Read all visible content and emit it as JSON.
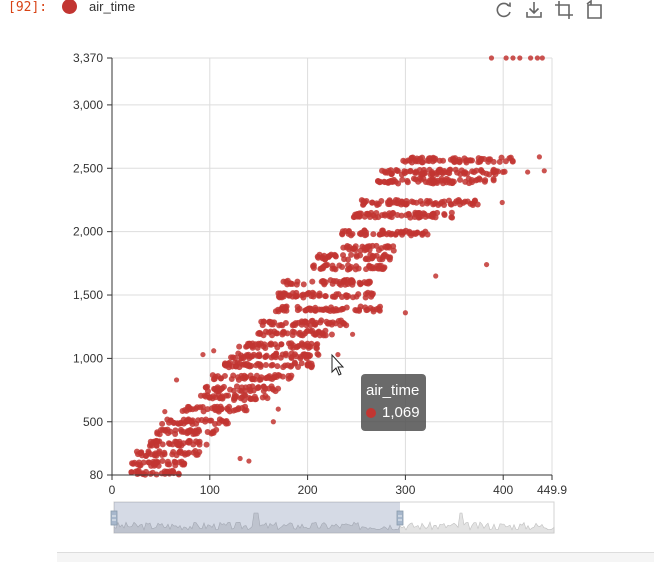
{
  "cell": {
    "prompt": "[92]:"
  },
  "legend": {
    "label": "air_time",
    "color": "#c23531"
  },
  "toolbox": [
    "restore-icon",
    "save-as-image-icon",
    "zoom-icon",
    "zoom-reset-icon"
  ],
  "tooltip": {
    "title": "air_time",
    "value": "1,069"
  },
  "chart_data": {
    "type": "scatter",
    "series": [
      {
        "name": "air_time",
        "color": "#c23531"
      }
    ],
    "xlim": [
      0,
      449.9
    ],
    "ylim": [
      80,
      3370
    ],
    "x_ticks": [
      "0",
      "100",
      "200",
      "300",
      "400",
      "449.9"
    ],
    "y_ticks": [
      "80",
      "500",
      "1,000",
      "1,500",
      "2,000",
      "2,500",
      "3,000",
      "3,370"
    ],
    "x_tick_values": [
      0,
      100,
      200,
      300,
      400,
      449.9
    ],
    "y_tick_values": [
      80,
      500,
      1000,
      1500,
      2000,
      2500,
      3000,
      3370
    ],
    "grid": true,
    "bands": [
      {
        "y": 2565,
        "x": [
          297,
          415
        ]
      },
      {
        "y": 2470,
        "x": [
          275,
          405
        ]
      },
      {
        "y": 2400,
        "x": [
          272,
          395
        ]
      },
      {
        "y": 2230,
        "x": [
          255,
          375
        ]
      },
      {
        "y": 2130,
        "x": [
          240,
          350
        ]
      },
      {
        "y": 1990,
        "x": [
          233,
          325
        ]
      },
      {
        "y": 1870,
        "x": [
          235,
          290
        ]
      },
      {
        "y": 1800,
        "x": [
          210,
          285
        ]
      },
      {
        "y": 1720,
        "x": [
          205,
          280
        ]
      },
      {
        "y": 1600,
        "x": [
          172,
          265
        ]
      },
      {
        "y": 1500,
        "x": [
          170,
          268
        ]
      },
      {
        "y": 1390,
        "x": [
          160,
          275
        ]
      },
      {
        "y": 1280,
        "x": [
          150,
          240
        ]
      },
      {
        "y": 1200,
        "x": [
          148,
          225
        ]
      },
      {
        "y": 1100,
        "x": [
          130,
          215
        ]
      },
      {
        "y": 1020,
        "x": [
          120,
          215
        ]
      },
      {
        "y": 950,
        "x": [
          115,
          205
        ]
      },
      {
        "y": 850,
        "x": [
          100,
          185
        ]
      },
      {
        "y": 760,
        "x": [
          95,
          170
        ]
      },
      {
        "y": 690,
        "x": [
          90,
          160
        ]
      },
      {
        "y": 600,
        "x": [
          70,
          140
        ]
      },
      {
        "y": 500,
        "x": [
          50,
          120
        ]
      },
      {
        "y": 420,
        "x": [
          45,
          110
        ]
      },
      {
        "y": 330,
        "x": [
          35,
          100
        ]
      },
      {
        "y": 250,
        "x": [
          25,
          90
        ]
      },
      {
        "y": 170,
        "x": [
          20,
          80
        ]
      },
      {
        "y": 100,
        "x": [
          18,
          70
        ]
      }
    ],
    "outliers": [
      {
        "x": 388,
        "y": 3370
      },
      {
        "x": 403,
        "y": 3370
      },
      {
        "x": 410,
        "y": 3370
      },
      {
        "x": 417,
        "y": 3370
      },
      {
        "x": 428,
        "y": 3370
      },
      {
        "x": 435,
        "y": 3370
      },
      {
        "x": 440,
        "y": 3370
      },
      {
        "x": 437,
        "y": 2590
      },
      {
        "x": 442,
        "y": 2480
      },
      {
        "x": 425,
        "y": 2470
      },
      {
        "x": 399,
        "y": 2230
      },
      {
        "x": 383,
        "y": 1740
      },
      {
        "x": 331,
        "y": 1650
      },
      {
        "x": 300,
        "y": 1360
      },
      {
        "x": 246,
        "y": 1190
      },
      {
        "x": 231,
        "y": 1030
      },
      {
        "x": 227,
        "y": 930
      },
      {
        "x": 104,
        "y": 1060
      },
      {
        "x": 93,
        "y": 1030
      },
      {
        "x": 66,
        "y": 830
      },
      {
        "x": 54,
        "y": 580
      },
      {
        "x": 170,
        "y": 600
      },
      {
        "x": 131,
        "y": 210
      },
      {
        "x": 140,
        "y": 190
      },
      {
        "x": 165,
        "y": 500
      }
    ],
    "dataZoom": {
      "start": 0,
      "end": 65
    }
  }
}
